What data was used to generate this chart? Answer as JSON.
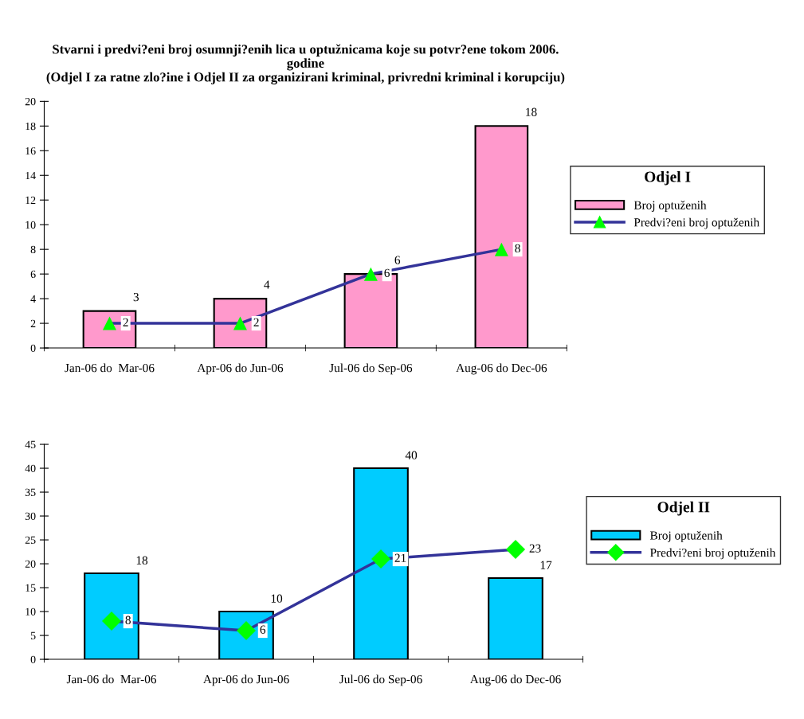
{
  "chart_data": [
    {
      "type": "bar",
      "title": "Stvarni i predvi?eni broj osumnji?enih lica u optužnicama koje su potvr?ene tokom 2006.\ngodine\n(Odjel I za ratne zlo?ine i Odjel II za organizirani kriminal, privredni kriminal i korupciju)",
      "legend_title": "Odjel I",
      "categories": [
        "Jan-06 do  Mar-06",
        "Apr-06 do Jun-06",
        "Jul-06 do Sep-06",
        "Aug-06 do Dec-06"
      ],
      "ylim": [
        0,
        20
      ],
      "yticks": [
        0,
        2,
        4,
        6,
        8,
        10,
        12,
        14,
        16,
        18,
        20
      ],
      "grid": false,
      "legend": "right",
      "data_labels": true,
      "series": [
        {
          "name": "Broj optuženih",
          "color": "#ff99cc",
          "values": [
            3,
            4,
            6,
            18
          ]
        },
        {
          "name": "Predvi?eni broj optuženih",
          "type": "line",
          "color": "#333399",
          "colors": [
            "#00ff00",
            "#00ff00",
            "#00ff00",
            "#00ff00"
          ],
          "marker": "triangle",
          "values": [
            2,
            2,
            6,
            8
          ]
        }
      ]
    },
    {
      "type": "bar",
      "legend_title": "Odjel II",
      "categories": [
        "Jan-06 do  Mar-06",
        "Apr-06 do Jun-06",
        "Jul-06 do Sep-06",
        "Aug-06 do Dec-06"
      ],
      "ylim": [
        0,
        45
      ],
      "yticks": [
        0,
        5,
        10,
        15,
        20,
        25,
        30,
        35,
        40,
        45
      ],
      "grid": false,
      "legend": "right",
      "data_labels": true,
      "series": [
        {
          "name": "Broj optuženih",
          "color": "#00ccff",
          "values": [
            18,
            10,
            40,
            17
          ]
        },
        {
          "name": "Predvi?eni broj optuženih",
          "type": "line",
          "color": "#333399",
          "colors": [
            "#00ff00",
            "#00ff00",
            "#00ff00",
            "#00ff00"
          ],
          "marker": "diamond",
          "values": [
            8,
            6,
            21,
            23
          ]
        }
      ]
    }
  ]
}
